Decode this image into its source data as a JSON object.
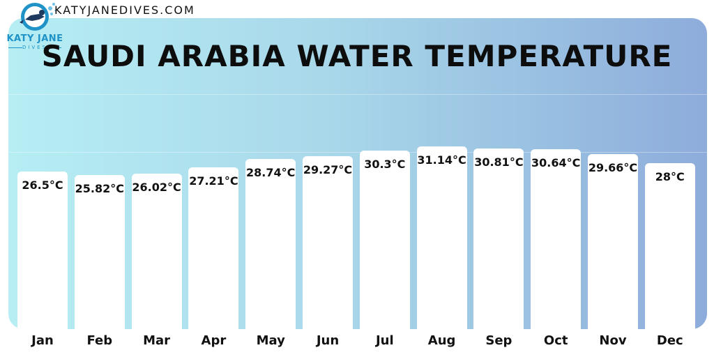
{
  "header": {
    "site": "KATYJANEDIVES.COM",
    "logo_name": "KATY JANE",
    "logo_sub": "DIVES",
    "logo_icon": "diver-icon"
  },
  "colors": {
    "background_start": "#b6eef4",
    "background_end": "#8eacdb",
    "bar": "#ffffff",
    "text": "#111111",
    "brand": "#1f93c8"
  },
  "chart_data": {
    "type": "bar",
    "title": "SAUDI ARABIA WATER TEMPERATURE",
    "categories": [
      "Jan",
      "Feb",
      "Mar",
      "Apr",
      "May",
      "Jun",
      "Jul",
      "Aug",
      "Sep",
      "Oct",
      "Nov",
      "Dec"
    ],
    "values": [
      26.5,
      25.82,
      26.02,
      27.21,
      28.74,
      29.27,
      30.3,
      31.14,
      30.81,
      30.64,
      29.66,
      28
    ],
    "value_labels": [
      "26.5°C",
      "25.82°C",
      "26.02°C",
      "27.21°C",
      "28.74°C",
      "29.27°C",
      "30.3°C",
      "31.14°C",
      "30.81°C",
      "30.64°C",
      "29.66°C",
      "28°C"
    ],
    "unit": "°C",
    "xlabel": "",
    "ylabel": "",
    "grid": false,
    "legend": "none"
  }
}
